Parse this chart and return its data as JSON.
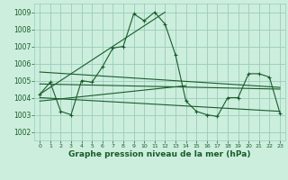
{
  "title": "Graphe pression niveau de la mer (hPa)",
  "bg_color": "#cceedd",
  "grid_color": "#99ccbb",
  "line_color": "#1a5c2a",
  "ylim": [
    1001.5,
    1009.5
  ],
  "yticks": [
    1002,
    1003,
    1004,
    1005,
    1006,
    1007,
    1008,
    1009
  ],
  "hourly_values": [
    1004.2,
    1004.9,
    1003.2,
    1003.0,
    1005.0,
    1004.9,
    1005.8,
    1006.9,
    1007.0,
    1008.9,
    1008.5,
    1009.0,
    1008.3,
    1006.5,
    1003.8,
    1003.2,
    1003.0,
    1002.9,
    1004.0,
    1004.0,
    1005.4,
    1005.4,
    1005.2,
    1003.1
  ],
  "trend_lines": [
    {
      "x": [
        0,
        23
      ],
      "y": [
        1005.5,
        1004.6
      ]
    },
    {
      "x": [
        0,
        23
      ],
      "y": [
        1004.8,
        1004.5
      ]
    },
    {
      "x": [
        0,
        14
      ],
      "y": [
        1003.8,
        1004.7
      ]
    },
    {
      "x": [
        0,
        23
      ],
      "y": [
        1004.0,
        1003.2
      ]
    },
    {
      "x": [
        0,
        12
      ],
      "y": [
        1004.2,
        1009.0
      ]
    }
  ],
  "x_labels": [
    "0",
    "1",
    "2",
    "3",
    "4",
    "5",
    "6",
    "7",
    "8",
    "9",
    "10",
    "11",
    "12",
    "13",
    "14",
    "15",
    "16",
    "17",
    "18",
    "19",
    "20",
    "21",
    "22",
    "23"
  ]
}
